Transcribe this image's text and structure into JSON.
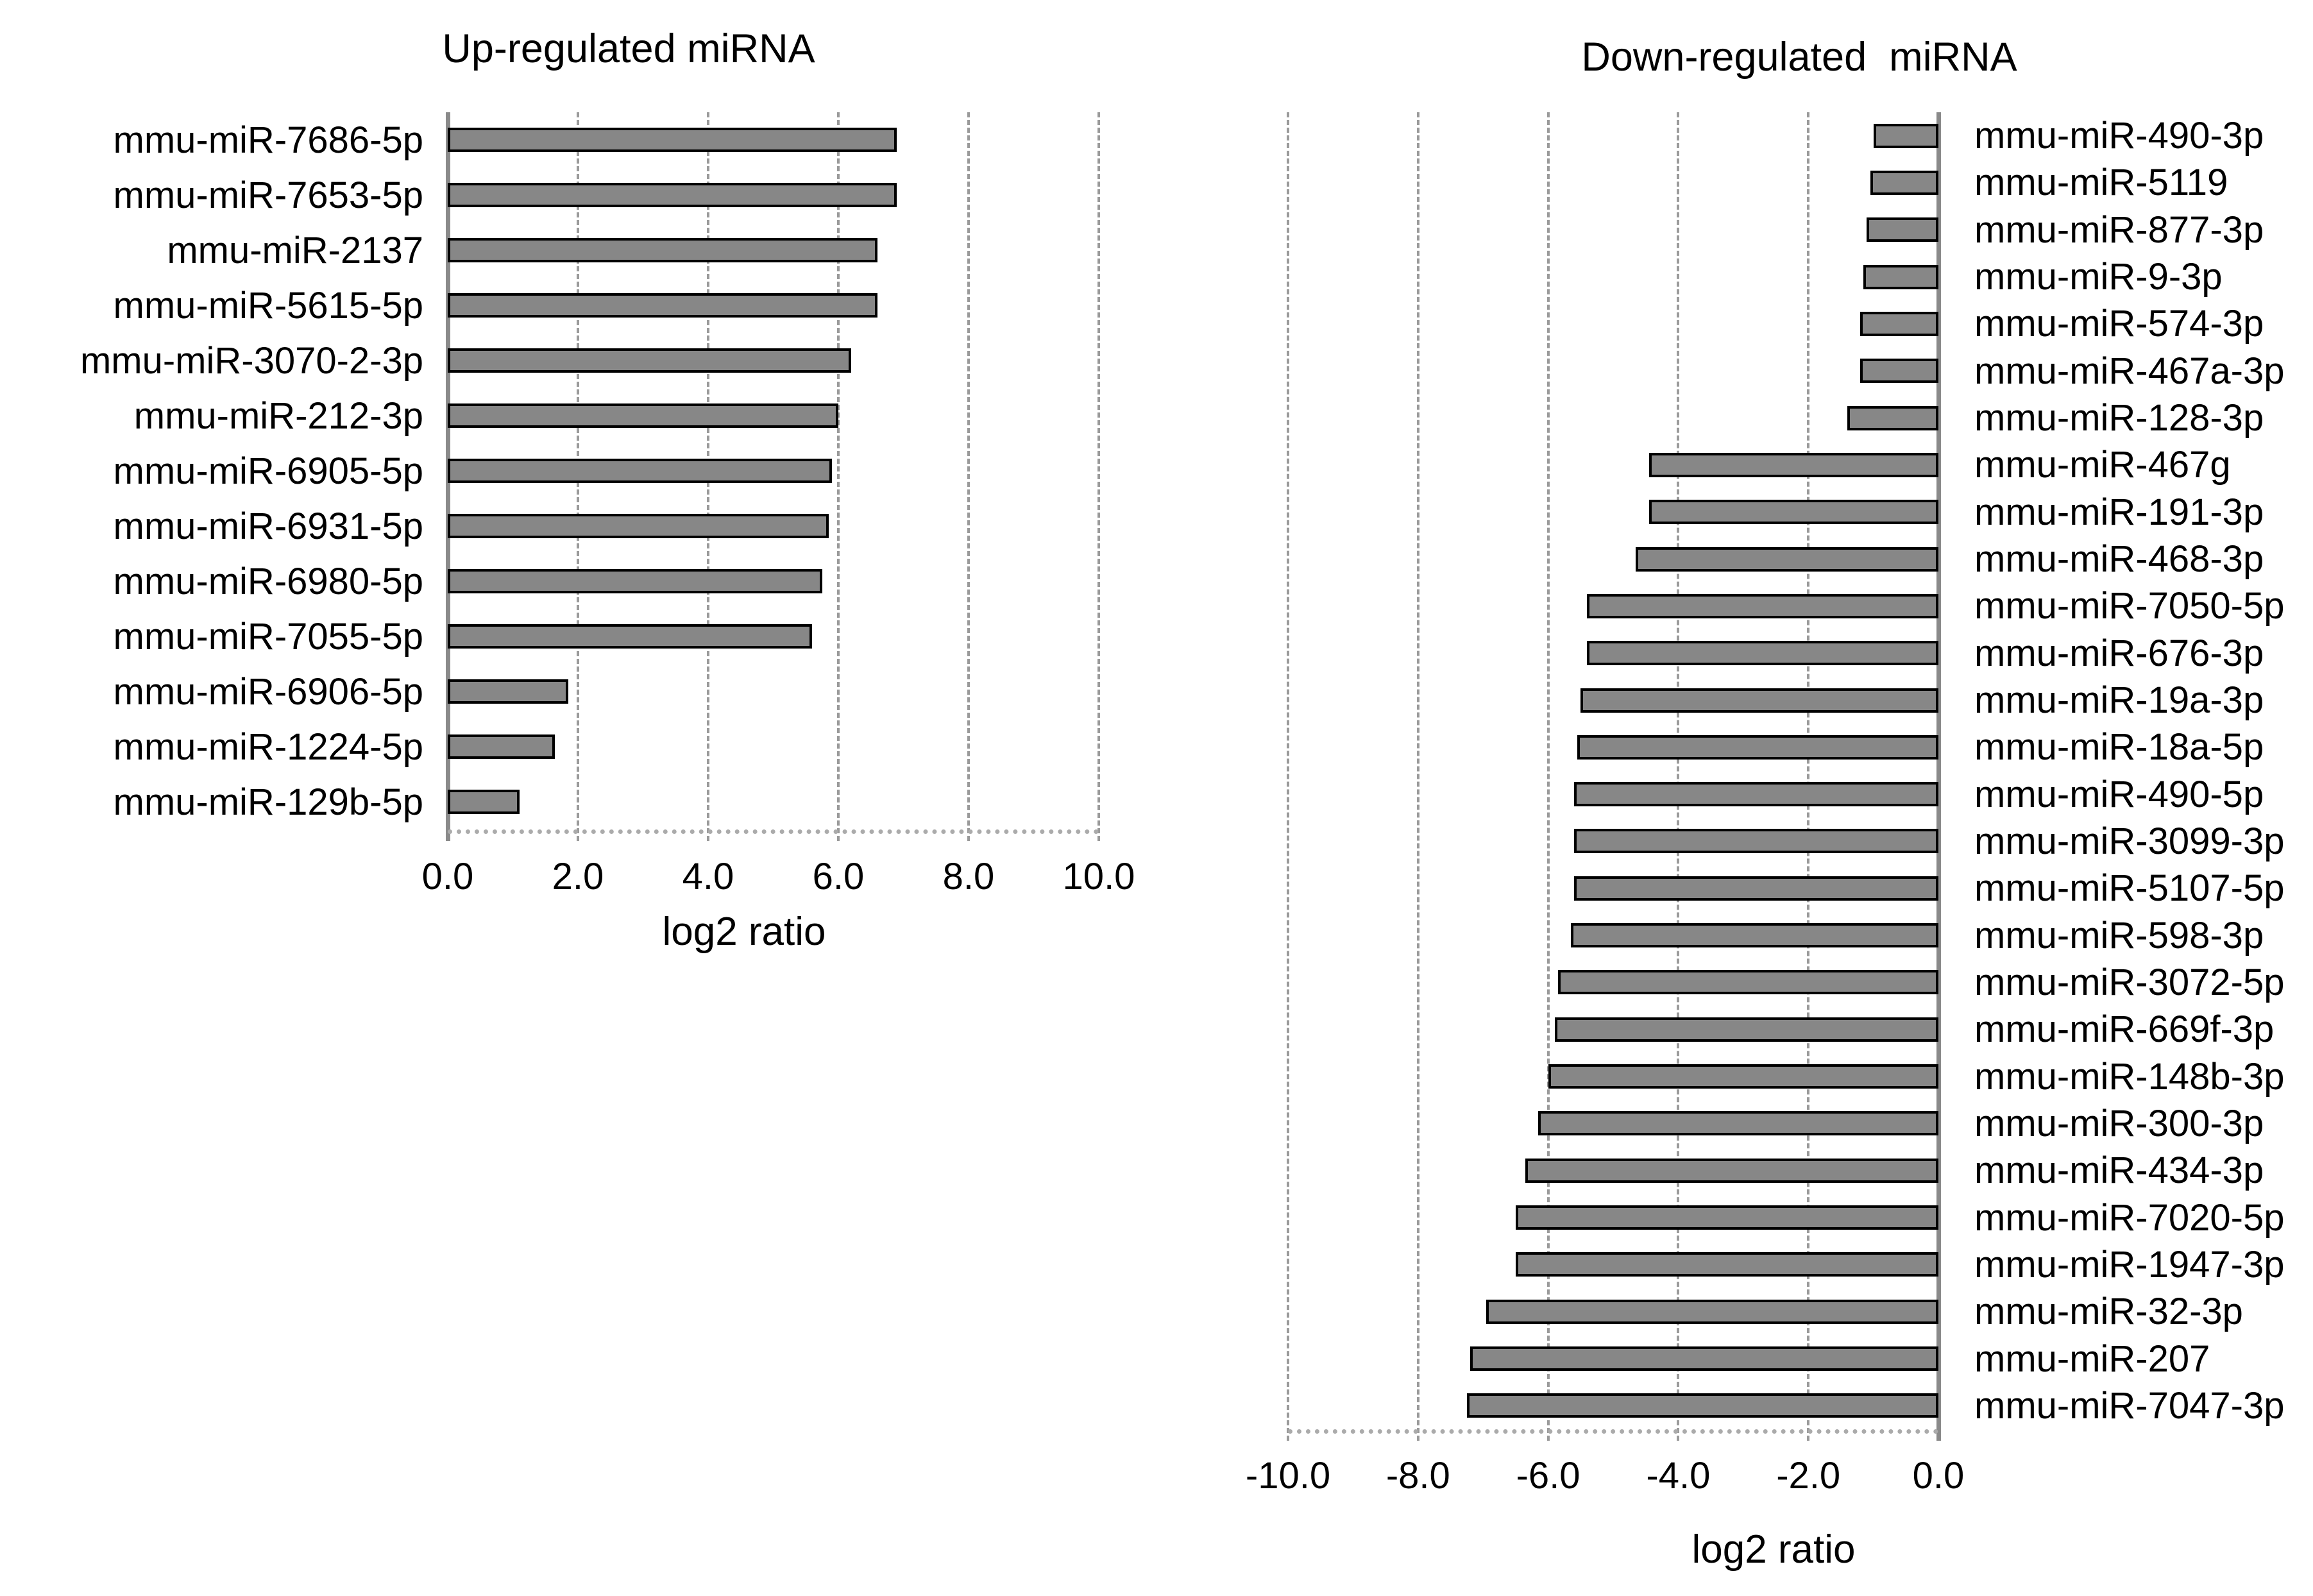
{
  "figure": {
    "background": "#ffffff",
    "bar_fill": "#878787",
    "bar_border": "#000000",
    "gridline_color": "#9a9a9a",
    "axis_color": "#8a8a8a",
    "baseline_color": "#ababab"
  },
  "chart_data": [
    {
      "type": "bar",
      "orientation": "horizontal",
      "title": "Up-regulated miRNA",
      "xlabel": "log2 ratio",
      "xlim": [
        0,
        10
      ],
      "x_ticks": [
        0,
        2,
        4,
        6,
        8,
        10
      ],
      "x_tick_labels": [
        "0.0",
        "2.0",
        "4.0",
        "6.0",
        "8.0",
        "10.0"
      ],
      "grid": "vertical-dashed",
      "legend": "none",
      "categories": [
        "mmu-miR-7686-5p",
        "mmu-miR-7653-5p",
        "mmu-miR-2137",
        "mmu-miR-5615-5p",
        "mmu-miR-3070-2-3p",
        "mmu-miR-212-3p",
        "mmu-miR-6905-5p",
        "mmu-miR-6931-5p",
        "mmu-miR-6980-5p",
        "mmu-miR-7055-5p",
        "mmu-miR-6906-5p",
        "mmu-miR-1224-5p",
        "mmu-miR-129b-5p"
      ],
      "values": [
        6.9,
        6.9,
        6.6,
        6.6,
        6.2,
        6.0,
        5.9,
        5.85,
        5.75,
        5.6,
        1.85,
        1.65,
        1.1
      ]
    },
    {
      "type": "bar",
      "orientation": "horizontal",
      "title": "Down-regulated  miRNA",
      "xlabel": "log2 ratio",
      "xlim": [
        -10,
        0
      ],
      "x_ticks": [
        -10,
        -8,
        -6,
        -4,
        -2,
        0
      ],
      "x_tick_labels": [
        "-10.0",
        "-8.0",
        "-6.0",
        "-4.0",
        "-2.0",
        "0.0"
      ],
      "grid": "vertical-dashed",
      "legend": "none",
      "categories": [
        "mmu-miR-490-3p",
        "mmu-miR-5119",
        "mmu-miR-877-3p",
        "mmu-miR-9-3p",
        "mmu-miR-574-3p",
        "mmu-miR-467a-3p",
        "mmu-miR-128-3p",
        "mmu-miR-467g",
        "mmu-miR-191-3p",
        "mmu-miR-468-3p",
        "mmu-miR-7050-5p",
        "mmu-miR-676-3p",
        "mmu-miR-19a-3p",
        "mmu-miR-18a-5p",
        "mmu-miR-490-5p",
        "mmu-miR-3099-3p",
        "mmu-miR-5107-5p",
        "mmu-miR-598-3p",
        "mmu-miR-3072-5p",
        "mmu-miR-669f-3p",
        "mmu-miR-148b-3p",
        "mmu-miR-300-3p",
        "mmu-miR-434-3p",
        "mmu-miR-7020-5p",
        "mmu-miR-1947-3p",
        "mmu-miR-32-3p",
        "mmu-miR-207",
        "mmu-miR-7047-3p"
      ],
      "values": [
        -1.0,
        -1.05,
        -1.1,
        -1.15,
        -1.2,
        -1.2,
        -1.4,
        -4.45,
        -4.45,
        -4.65,
        -5.4,
        -5.4,
        -5.5,
        -5.55,
        -5.6,
        -5.6,
        -5.6,
        -5.65,
        -5.85,
        -5.9,
        -6.0,
        -6.15,
        -6.35,
        -6.5,
        -6.5,
        -6.95,
        -7.2,
        -7.25
      ]
    }
  ]
}
